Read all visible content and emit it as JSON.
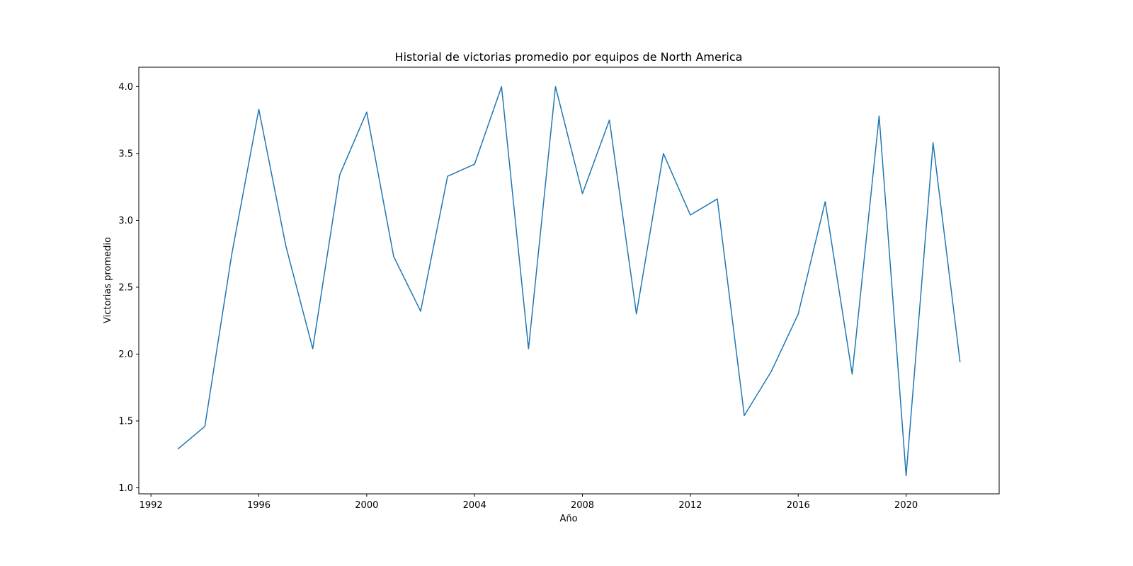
{
  "chart_data": {
    "type": "line",
    "title": "Historial de victorias promedio por equipos de North America",
    "xlabel": "Año",
    "ylabel": "Victorias promedio",
    "xlim": [
      1991.55,
      2023.45
    ],
    "ylim": [
      0.955,
      4.145
    ],
    "x_ticks": [
      1992,
      1996,
      2000,
      2004,
      2008,
      2012,
      2016,
      2020
    ],
    "y_ticks": [
      1.0,
      1.5,
      2.0,
      2.5,
      3.0,
      3.5,
      4.0
    ],
    "y_tick_labels": [
      "1.0",
      "1.5",
      "2.0",
      "2.5",
      "3.0",
      "3.5",
      "4.0"
    ],
    "grid": false,
    "line_color": "#1f77b4",
    "series": [
      {
        "x": [
          1993,
          1994,
          1995,
          1996,
          1997,
          1998,
          1999,
          2000,
          2001,
          2002,
          2003,
          2004,
          2005,
          2006,
          2007,
          2008,
          2009,
          2010,
          2011,
          2012,
          2013,
          2014,
          2015,
          2016,
          2017,
          2018,
          2019,
          2020,
          2021,
          2022
        ],
        "y": [
          1.29,
          1.46,
          2.75,
          3.83,
          2.81,
          2.04,
          3.34,
          3.81,
          2.73,
          2.32,
          3.33,
          3.42,
          4.0,
          2.04,
          4.0,
          3.2,
          3.75,
          2.3,
          3.5,
          3.04,
          3.16,
          1.54,
          1.87,
          2.3,
          3.14,
          1.85,
          3.78,
          1.09,
          3.58,
          1.94
        ]
      }
    ]
  }
}
